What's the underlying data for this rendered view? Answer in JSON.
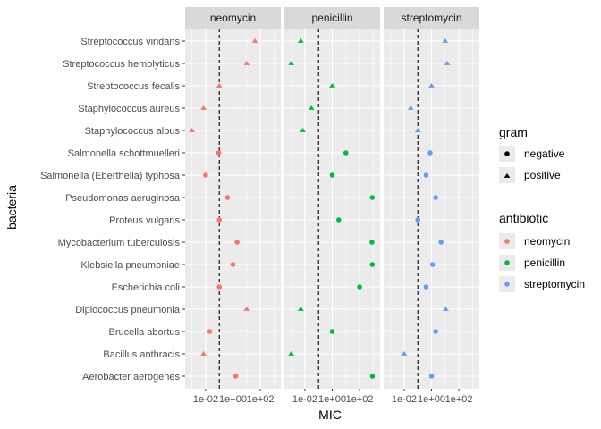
{
  "chart_data": {
    "type": "scatter",
    "xlabel": "MIC",
    "ylabel": "bacteria",
    "x_scale": "log10",
    "xlim_log10": [
      -3.5,
      3.5
    ],
    "x_ticks": [
      {
        "label": "1e-02",
        "log10": -2
      },
      {
        "label": "1e+00",
        "log10": 0
      },
      {
        "label": "1e+02",
        "log10": 2
      }
    ],
    "reference_line_x": 0.1,
    "grid": true,
    "facets": [
      "neomycin",
      "penicillin",
      "streptomycin"
    ],
    "categories": [
      "Streptococcus viridans",
      "Streptococcus hemolyticus",
      "Streptococcus fecalis",
      "Staphylococcus aureus",
      "Staphylococcus albus",
      "Salmonella schottmuelleri",
      "Salmonella (Eberthella) typhosa",
      "Pseudomonas aeruginosa",
      "Proteus vulgaris",
      "Mycobacterium tuberculosis",
      "Klebsiella pneumoniae",
      "Escherichia coli",
      "Diplococcus pneumonia",
      "Brucella abortus",
      "Bacillus anthracis",
      "Aerobacter aerogenes"
    ],
    "gram": [
      "positive",
      "positive",
      "positive",
      "positive",
      "positive",
      "negative",
      "negative",
      "negative",
      "negative",
      "negative",
      "negative",
      "negative",
      "positive",
      "negative",
      "positive",
      "negative"
    ],
    "series": [
      {
        "name": "neomycin",
        "color": "#F8766D",
        "values": [
          40,
          10,
          0.1,
          0.007,
          0.001,
          0.09,
          0.01,
          0.4,
          0.1,
          2,
          1,
          0.1,
          10,
          0.02,
          0.007,
          1.6
        ]
      },
      {
        "name": "penicillin",
        "color": "#00BA38",
        "values": [
          0.005,
          0.001,
          1,
          0.03,
          0.007,
          10,
          1,
          850,
          3,
          800,
          850,
          100,
          0.005,
          1,
          0.001,
          870
        ]
      },
      {
        "name": "streptomycin",
        "color": "#619CFF",
        "values": [
          10,
          14,
          1,
          0.03,
          0.1,
          0.8,
          0.4,
          2,
          0.1,
          5,
          1.2,
          0.4,
          11,
          2,
          0.01,
          1
        ]
      }
    ],
    "legend": {
      "position": "right",
      "gram_title": "gram",
      "gram_items": [
        {
          "label": "negative",
          "shape": "circle"
        },
        {
          "label": "positive",
          "shape": "triangle"
        }
      ],
      "antibiotic_title": "antibiotic",
      "antibiotic_items": [
        {
          "label": "neomycin",
          "color": "#F8766D"
        },
        {
          "label": "penicillin",
          "color": "#00BA38"
        },
        {
          "label": "streptomycin",
          "color": "#619CFF"
        }
      ]
    },
    "colors": {
      "panel_bg": "#EBEBEB",
      "strip_bg": "#D9D9D9",
      "grid": "#FFFFFF"
    }
  }
}
